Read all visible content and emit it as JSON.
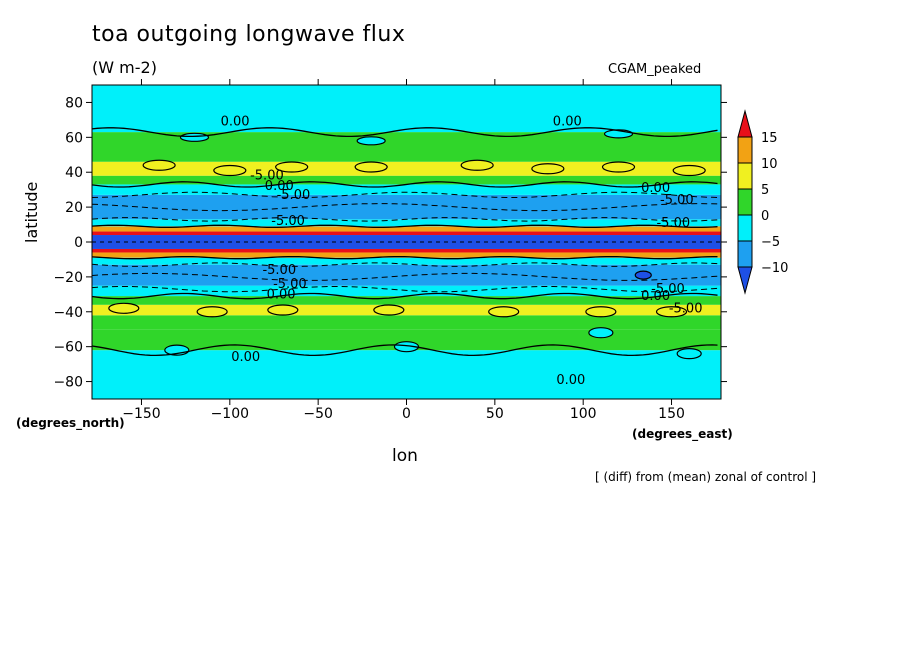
{
  "chart_data": {
    "type": "heatmap",
    "title": "toa outgoing longwave flux",
    "units": "(W m-2)",
    "model": "CGAM_peaked",
    "xlabel": "lon",
    "ylabel": "latitude",
    "x_unit_label": "(degrees_east)",
    "y_unit_label": "(degrees_north)",
    "note": "[ (diff) from (mean) zonal of control ]",
    "xlim": [
      -178,
      178
    ],
    "ylim": [
      -90,
      90
    ],
    "x_ticks": [
      -150,
      -100,
      -50,
      0,
      50,
      100,
      150
    ],
    "y_ticks": [
      80,
      60,
      40,
      20,
      0,
      -20,
      -40,
      -60,
      -80
    ],
    "colorbar": {
      "levels": [
        15,
        10,
        5,
        0,
        -5,
        -10
      ],
      "bins": [
        {
          "range": "> 15",
          "color": "#e8101a"
        },
        {
          "range": "10 to 15",
          "color": "#f2a214"
        },
        {
          "range": "5 to 10",
          "color": "#f0f020"
        },
        {
          "range": "0 to 5",
          "color": "#30d62a"
        },
        {
          "range": "-5 to 0",
          "color": "#00f0fa"
        },
        {
          "range": "-10 to -5",
          "color": "#1ea0f0"
        },
        {
          "range": "< -10",
          "color": "#1e50e6"
        }
      ]
    },
    "zonal_bands": [
      {
        "lat": [
          -90,
          -62
        ],
        "value": -2
      },
      {
        "lat": [
          -62,
          -50
        ],
        "value": 2
      },
      {
        "lat": [
          -50,
          -42
        ],
        "value": 3
      },
      {
        "lat": [
          -42,
          -36
        ],
        "value": 6
      },
      {
        "lat": [
          -36,
          -31
        ],
        "value": 2
      },
      {
        "lat": [
          -31,
          -25
        ],
        "value": -3
      },
      {
        "lat": [
          -25,
          -13
        ],
        "value": -7
      },
      {
        "lat": [
          -13,
          -9
        ],
        "value": -2
      },
      {
        "lat": [
          -9,
          -6
        ],
        "value": 12
      },
      {
        "lat": [
          -6,
          -4
        ],
        "value": 17
      },
      {
        "lat": [
          -4,
          4
        ],
        "value": -13
      },
      {
        "lat": [
          4,
          6
        ],
        "value": 17
      },
      {
        "lat": [
          6,
          9
        ],
        "value": 12
      },
      {
        "lat": [
          9,
          13
        ],
        "value": -2
      },
      {
        "lat": [
          13,
          27
        ],
        "value": -7
      },
      {
        "lat": [
          27,
          33
        ],
        "value": -3
      },
      {
        "lat": [
          33,
          38
        ],
        "value": 2
      },
      {
        "lat": [
          38,
          46
        ],
        "value": 7
      },
      {
        "lat": [
          46,
          63
        ],
        "value": 2
      },
      {
        "lat": [
          63,
          90
        ],
        "value": -2
      }
    ],
    "contour_labels": [
      {
        "text": "0.00",
        "lon": -97,
        "lat": 69
      },
      {
        "text": "0.00",
        "lon": 91,
        "lat": 69
      },
      {
        "text": "-5.00",
        "lon": -79,
        "lat": 38
      },
      {
        "text": "0.00",
        "lon": -72,
        "lat": 32
      },
      {
        "text": "-5.00",
        "lon": -64,
        "lat": 27
      },
      {
        "text": "0.00",
        "lon": 141,
        "lat": 31
      },
      {
        "text": "-5.00",
        "lon": 153,
        "lat": 24
      },
      {
        "text": "-5.00",
        "lon": -67,
        "lat": 12
      },
      {
        "text": "-5.00",
        "lon": 151,
        "lat": 11
      },
      {
        "text": "-5.00",
        "lon": -72,
        "lat": -16
      },
      {
        "text": "-5.00",
        "lon": -66,
        "lat": -24
      },
      {
        "text": "0.00",
        "lon": -71,
        "lat": -30
      },
      {
        "text": "-5.00",
        "lon": 148,
        "lat": -27
      },
      {
        "text": "0.00",
        "lon": 141,
        "lat": -31
      },
      {
        "text": "-5.00",
        "lon": 158,
        "lat": -38
      },
      {
        "text": "0.00",
        "lon": -91,
        "lat": -66
      },
      {
        "text": "0.00",
        "lon": 93,
        "lat": -79
      }
    ]
  }
}
